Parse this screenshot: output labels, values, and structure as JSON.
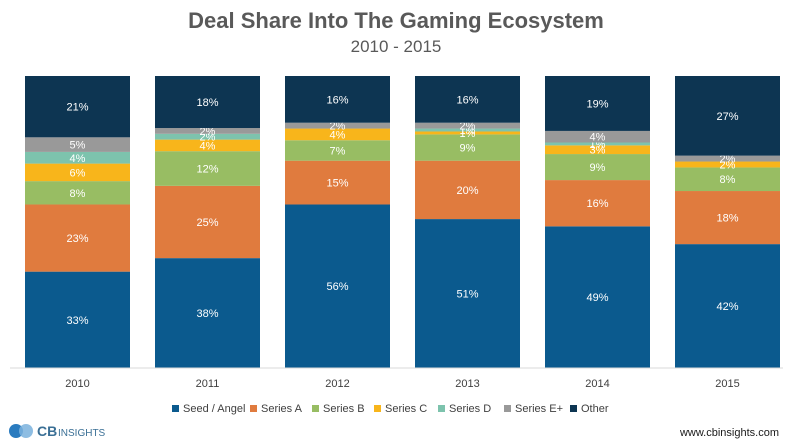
{
  "chart_data": {
    "type": "bar",
    "stacked": true,
    "normalized": true,
    "title": "Deal Share Into The Gaming Ecosystem",
    "subtitle": "2010 - 2015",
    "xlabel": "",
    "ylabel": "",
    "ylim": [
      0,
      100
    ],
    "categories": [
      "2010",
      "2011",
      "2012",
      "2013",
      "2014",
      "2015"
    ],
    "series": [
      {
        "name": "Seed / Angel",
        "color": "#0b5a8e",
        "label_color": "#ffffff",
        "values": [
          33,
          38,
          56,
          51,
          49,
          42
        ]
      },
      {
        "name": "Series A",
        "color": "#e07b3e",
        "label_color": "#ffffff",
        "values": [
          23,
          25,
          15,
          20,
          16,
          18
        ]
      },
      {
        "name": "Series B",
        "color": "#98bd63",
        "label_color": "#ffffff",
        "values": [
          8,
          12,
          7,
          9,
          9,
          8
        ]
      },
      {
        "name": "Series C",
        "color": "#f8b51b",
        "label_color": "#ffffff",
        "values": [
          6,
          4,
          4,
          1,
          3,
          2
        ]
      },
      {
        "name": "Series D",
        "color": "#7dc3ad",
        "label_color": "#ffffff",
        "values": [
          4,
          2,
          0,
          1,
          1,
          0
        ]
      },
      {
        "name": "Series E+",
        "color": "#999999",
        "label_color": "#ffffff",
        "values": [
          5,
          2,
          2,
          2,
          4,
          2
        ]
      },
      {
        "name": "Other",
        "color": "#0d3552",
        "label_color": "#ffffff",
        "values": [
          21,
          18,
          16,
          16,
          19,
          27
        ]
      }
    ],
    "legend_position": "bottom"
  },
  "footer": {
    "logo_cb": "CB",
    "logo_insights": "INSIGHTS",
    "url": "www.cbinsights.com"
  }
}
